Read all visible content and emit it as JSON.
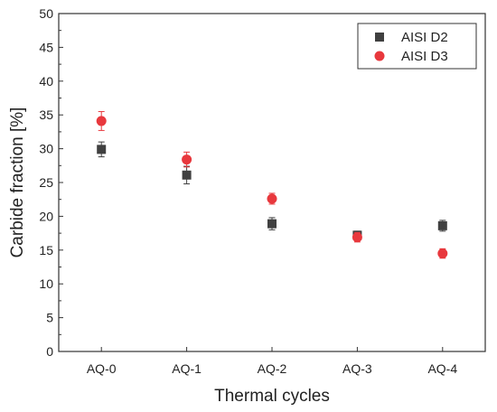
{
  "chart_data": {
    "type": "scatter",
    "title": "",
    "xlabel": "Thermal cycles",
    "ylabel": "Carbide fraction [%]",
    "categories": [
      "AQ-0",
      "AQ-1",
      "AQ-2",
      "AQ-3",
      "AQ-4"
    ],
    "ylim": [
      0,
      50
    ],
    "yticks": [
      "0",
      "5",
      "10",
      "15",
      "20",
      "25",
      "30",
      "35",
      "40",
      "45",
      "50"
    ],
    "grid": false,
    "legend_position": "top-right",
    "series": [
      {
        "name": "AISI D2",
        "marker": "square",
        "color": "#404040",
        "values": [
          29.9,
          26.1,
          18.9,
          17.2,
          18.6
        ],
        "errors": [
          1.1,
          1.3,
          0.9,
          0.6,
          0.8
        ]
      },
      {
        "name": "AISI D3",
        "marker": "circle",
        "color": "#e8383d",
        "values": [
          34.1,
          28.4,
          22.6,
          16.9,
          14.5
        ],
        "errors": [
          1.4,
          1.1,
          0.8,
          0.7,
          0.7
        ]
      }
    ]
  }
}
